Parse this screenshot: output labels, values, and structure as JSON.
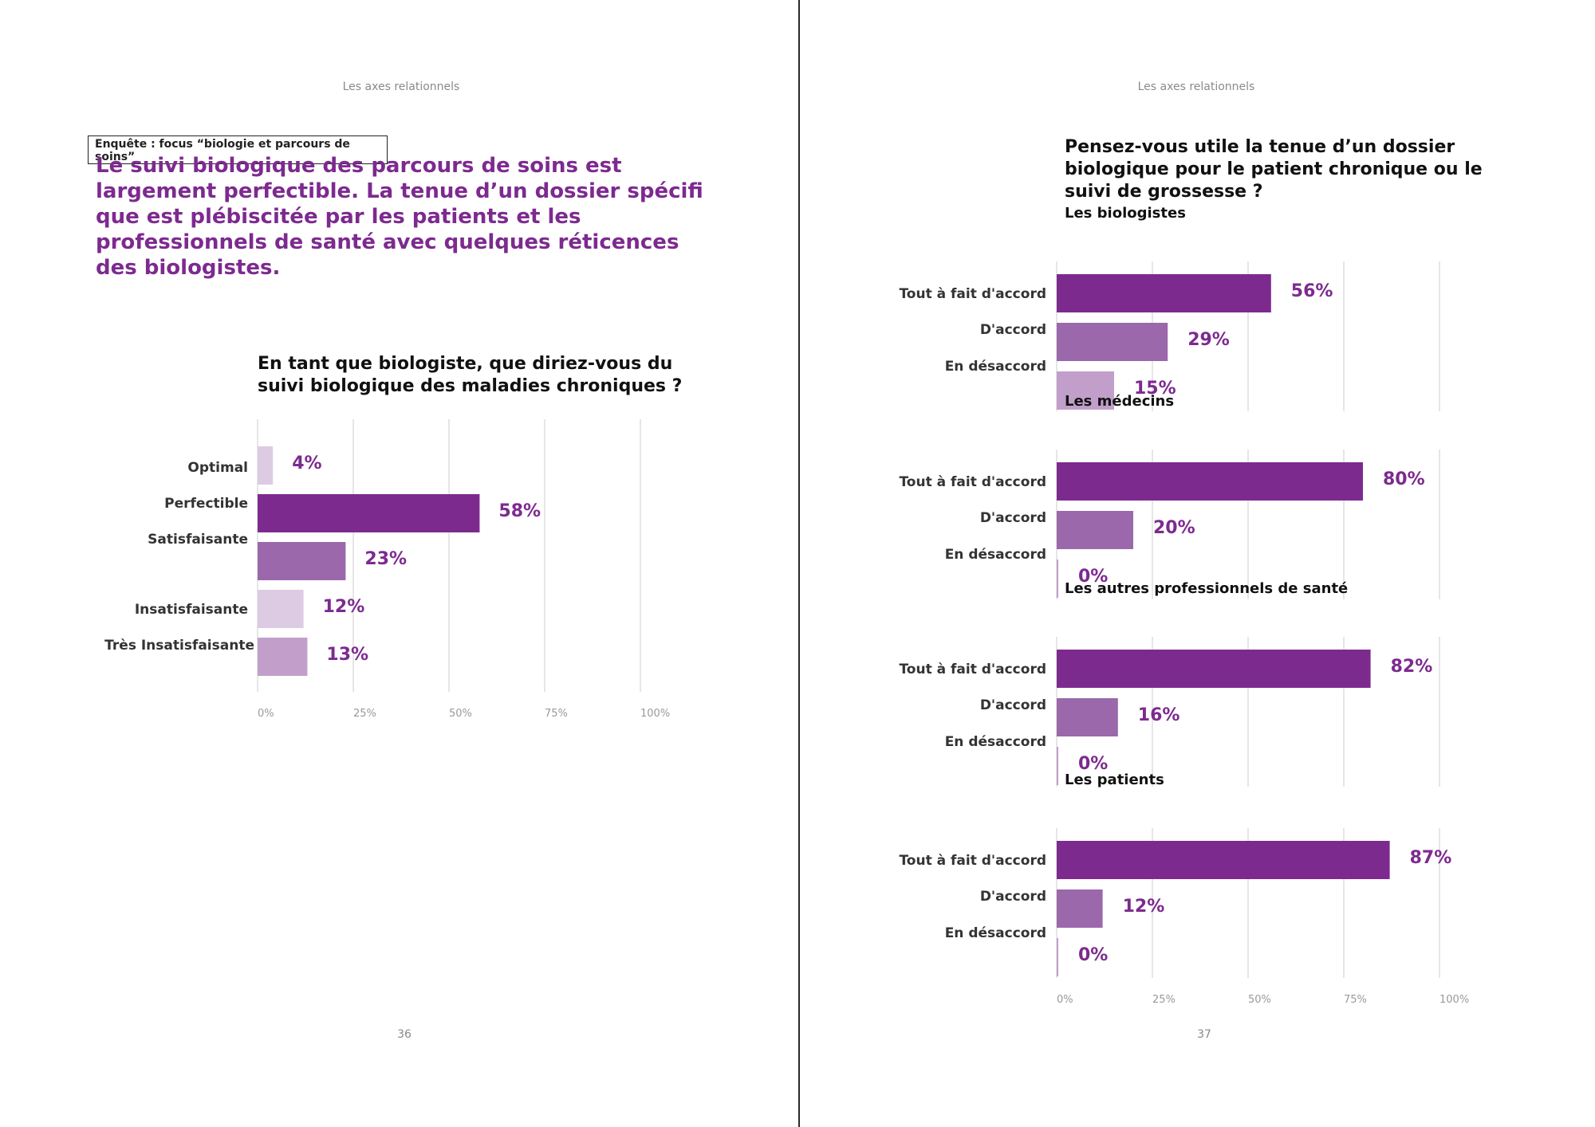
{
  "left_page": {
    "running_head": "Les axes relationnels",
    "section_tag": "Enquête : focus “biologie et parcours de soins”",
    "headline": "Le suivi biologique des parcours de soins est largement perfectible. La tenue d’un dossier spécifi que est plébiscitée par les patients et les professionnels de santé avec quelques réticences des biologistes.",
    "page_number": "36"
  },
  "right_page": {
    "running_head": "Les axes relationnels",
    "page_number": "37"
  },
  "colors": {
    "accent": "#7d2a8f",
    "dark": "#7d2a8f",
    "medium": "#9b68ab",
    "light": "#c19fca",
    "pale": "#ddcbe3"
  },
  "chart_data": [
    {
      "type": "bar",
      "orientation": "horizontal",
      "title": "En tant que biologiste, que diriez-vous du suivi biologique des maladies chroniques ?",
      "categories": [
        "Optimal",
        "Perfectible",
        "Satisfaisante",
        "Insatisfaisante",
        "Très Insatisfaisante"
      ],
      "values": [
        4,
        58,
        23,
        12,
        13
      ],
      "value_labels": [
        "4%",
        "58%",
        "23%",
        "12%",
        "13%"
      ],
      "bar_colors": [
        "#ddcbe3",
        "#7d2a8f",
        "#9b68ab",
        "#ddcbe3",
        "#c19fca"
      ],
      "xlim": [
        0,
        100
      ],
      "xticks": [
        "0%",
        "25%",
        "50%",
        "75%",
        "100%"
      ],
      "grid": true
    },
    {
      "type": "bar",
      "orientation": "horizontal",
      "title": "Pensez-vous utile la tenue d’un dossier biologique pour le patient chronique ou le suivi de grossesse ?",
      "categories": [
        "Tout à fait d'accord",
        "D'accord",
        "En désaccord"
      ],
      "bar_colors": [
        "#7d2a8f",
        "#9b68ab",
        "#c19fca"
      ],
      "xlim": [
        0,
        100
      ],
      "xticks": [
        "0%",
        "25%",
        "50%",
        "75%",
        "100%"
      ],
      "grid": true,
      "groups": [
        {
          "name": "Les biologistes",
          "values": [
            56,
            29,
            15
          ],
          "value_labels": [
            "56%",
            "29%",
            "15%"
          ]
        },
        {
          "name": "Les médecins",
          "values": [
            80,
            20,
            0
          ],
          "value_labels": [
            "80%",
            "20%",
            "0%"
          ]
        },
        {
          "name": "Les autres professionnels de santé",
          "values": [
            82,
            16,
            0
          ],
          "value_labels": [
            "82%",
            "16%",
            "0%"
          ]
        },
        {
          "name": "Les patients",
          "values": [
            87,
            12,
            0
          ],
          "value_labels": [
            "87%",
            "12%",
            "0%"
          ]
        }
      ]
    }
  ]
}
